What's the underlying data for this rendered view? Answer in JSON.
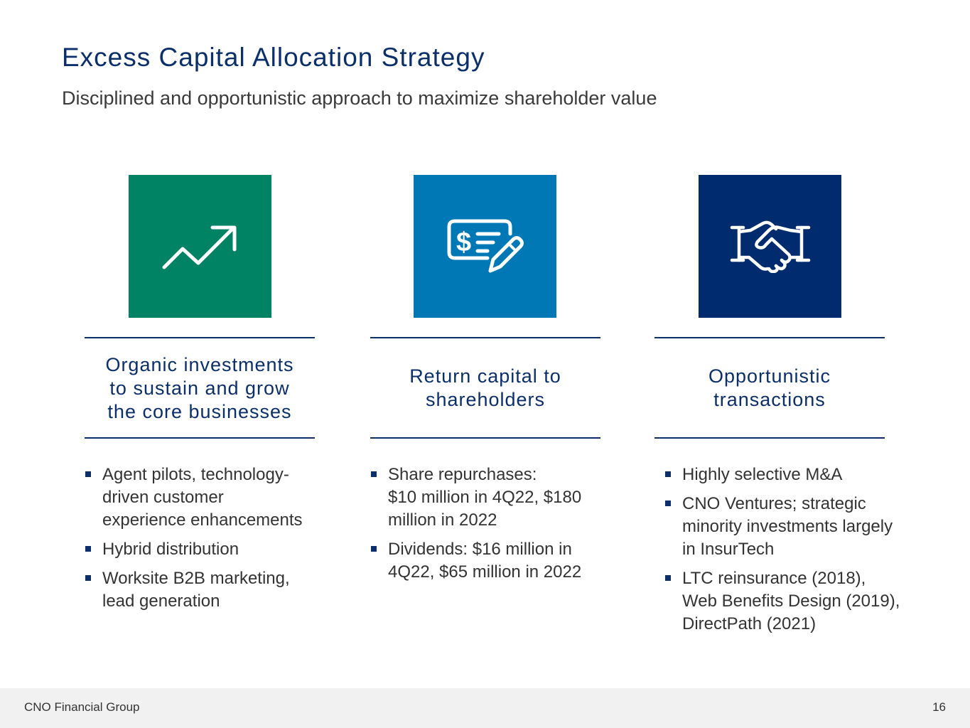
{
  "slide": {
    "title": "Excess Capital Allocation Strategy",
    "subtitle": "Disciplined and opportunistic approach to maximize shareholder value"
  },
  "colors": {
    "navy": "#0b2f6b",
    "green_tile": "#008264",
    "blue_tile": "#0078b6",
    "navy_tile": "#002b6f"
  },
  "columns": [
    {
      "icon": "trend-up-icon",
      "heading_lines": [
        "Organic investments",
        "to sustain and grow",
        "the core businesses"
      ],
      "bullets": [
        [
          "Agent pilots, technology-",
          "driven customer",
          "experience enhancements"
        ],
        [
          "Hybrid distribution"
        ],
        [
          "Worksite B2B marketing,",
          "lead generation"
        ]
      ]
    },
    {
      "icon": "check-pen-icon",
      "heading_lines": [
        "Return capital to",
        "shareholders"
      ],
      "bullets": [
        [
          "Share repurchases:",
          "$10 million in 4Q22, $180",
          "million in 2022"
        ],
        [
          "Dividends: $16 million in",
          "4Q22, $65 million in 2022"
        ]
      ]
    },
    {
      "icon": "handshake-icon",
      "heading_lines": [
        "Opportunistic",
        "transactions"
      ],
      "bullets": [
        [
          "Highly selective M&A"
        ],
        [
          "CNO Ventures; strategic",
          "minority investments largely",
          "in InsurTech"
        ],
        [
          "LTC reinsurance (2018),",
          "Web Benefits Design (2019),",
          "DirectPath (2021)"
        ]
      ]
    }
  ],
  "footer": {
    "company": "CNO Financial Group",
    "page_number": "16"
  }
}
